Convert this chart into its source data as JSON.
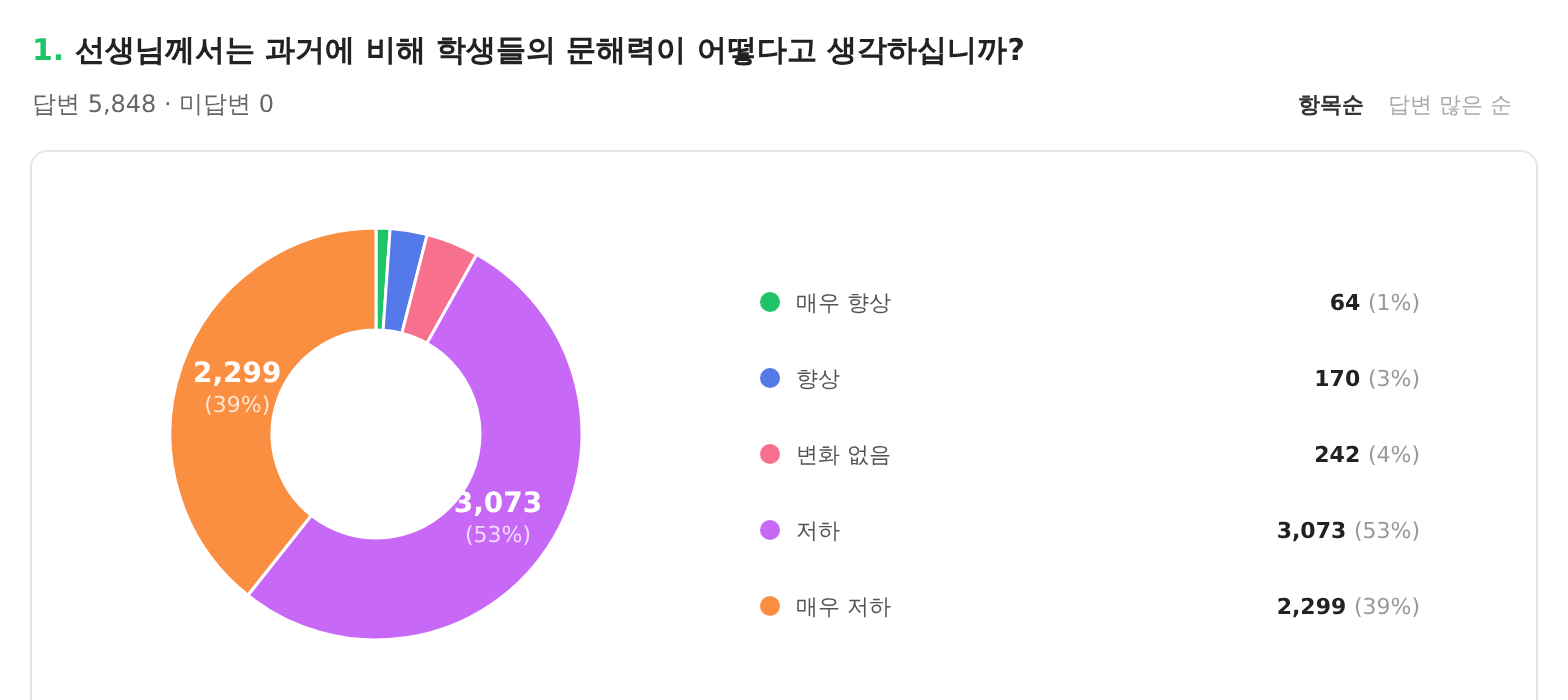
{
  "chart_data": {
    "type": "donut",
    "title": "1. 선생님께서는 과거에 비해 학생들의 문해력이 어떻다고 생각하십니까?",
    "subtitle": "답변 5,848 · 미답변 0",
    "annotations": [
      "항목순",
      "답변 많은 순"
    ],
    "categories": [
      "매우 향상",
      "향상",
      "변화 없음",
      "저하",
      "매우 저하"
    ],
    "values": [
      64,
      170,
      242,
      3073,
      2299
    ],
    "colors": [
      "#1ec467",
      "#5479e8",
      "#f7708d",
      "#c868f7",
      "#fa8f42"
    ],
    "value_labels": [
      "64 (1%)",
      "170 (3%)",
      "242 (4%)",
      "3,073 (53%)",
      "2,299 (39%)"
    ],
    "legend": "right"
  }
}
